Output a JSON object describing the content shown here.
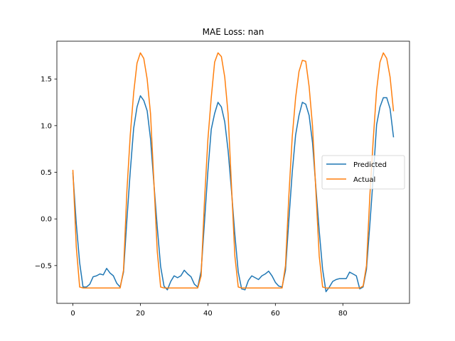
{
  "chart_data": {
    "type": "line",
    "title": "MAE Loss: nan",
    "xlabel": "",
    "ylabel": "",
    "xlim": [
      -4.75,
      99.75
    ],
    "ylim": [
      -0.905,
      1.905
    ],
    "xticks": [
      0,
      20,
      40,
      60,
      80
    ],
    "yticks": [
      -0.5,
      0.0,
      0.5,
      1.0,
      1.5
    ],
    "ytick_labels": [
      "−0.5",
      "0.0",
      "0.5",
      "1.0",
      "1.5"
    ],
    "grid": false,
    "legend_position": "center-right",
    "series": [
      {
        "name": "Predicted",
        "color": "#1f77b4",
        "values": [
          0.49,
          -0.05,
          -0.47,
          -0.73,
          -0.73,
          -0.7,
          -0.62,
          -0.61,
          -0.59,
          -0.6,
          -0.53,
          -0.58,
          -0.61,
          -0.69,
          -0.73,
          -0.57,
          -0.01,
          0.51,
          0.97,
          1.2,
          1.32,
          1.27,
          1.16,
          0.86,
          0.38,
          -0.09,
          -0.51,
          -0.72,
          -0.76,
          -0.67,
          -0.61,
          -0.63,
          -0.61,
          -0.55,
          -0.59,
          -0.62,
          -0.7,
          -0.73,
          -0.56,
          -0.03,
          0.51,
          0.96,
          1.13,
          1.25,
          1.2,
          1.04,
          0.73,
          0.3,
          -0.17,
          -0.57,
          -0.75,
          -0.76,
          -0.66,
          -0.61,
          -0.63,
          -0.65,
          -0.61,
          -0.59,
          -0.56,
          -0.61,
          -0.68,
          -0.72,
          -0.73,
          -0.55,
          -0.01,
          0.5,
          0.9,
          1.11,
          1.25,
          1.23,
          1.11,
          0.82,
          0.34,
          -0.13,
          -0.54,
          -0.78,
          -0.73,
          -0.67,
          -0.65,
          -0.64,
          -0.64,
          -0.64,
          -0.57,
          -0.59,
          -0.61,
          -0.75,
          -0.73,
          -0.54,
          -0.06,
          0.45,
          1.01,
          1.2,
          1.3,
          1.3,
          1.18,
          0.88
        ]
      },
      {
        "name": "Actual",
        "color": "#ff7f0e",
        "values": [
          0.52,
          -0.3,
          -0.73,
          -0.74,
          -0.74,
          -0.74,
          -0.74,
          -0.74,
          -0.74,
          -0.74,
          -0.74,
          -0.74,
          -0.74,
          -0.74,
          -0.74,
          -0.55,
          0.3,
          0.9,
          1.35,
          1.67,
          1.78,
          1.72,
          1.5,
          1.13,
          0.4,
          -0.35,
          -0.73,
          -0.74,
          -0.74,
          -0.74,
          -0.74,
          -0.74,
          -0.74,
          -0.74,
          -0.74,
          -0.74,
          -0.74,
          -0.74,
          -0.61,
          0.2,
          0.85,
          1.3,
          1.68,
          1.78,
          1.74,
          1.52,
          1.12,
          0.35,
          -0.4,
          -0.73,
          -0.74,
          -0.74,
          -0.74,
          -0.74,
          -0.74,
          -0.74,
          -0.74,
          -0.74,
          -0.74,
          -0.74,
          -0.74,
          -0.74,
          -0.74,
          -0.5,
          0.25,
          0.88,
          1.3,
          1.58,
          1.7,
          1.69,
          1.42,
          1.0,
          0.3,
          -0.4,
          -0.73,
          -0.74,
          -0.74,
          -0.74,
          -0.74,
          -0.74,
          -0.74,
          -0.74,
          -0.74,
          -0.74,
          -0.74,
          -0.74,
          -0.72,
          -0.5,
          0.25,
          0.85,
          1.38,
          1.68,
          1.78,
          1.72,
          1.52,
          1.16
        ]
      }
    ]
  }
}
